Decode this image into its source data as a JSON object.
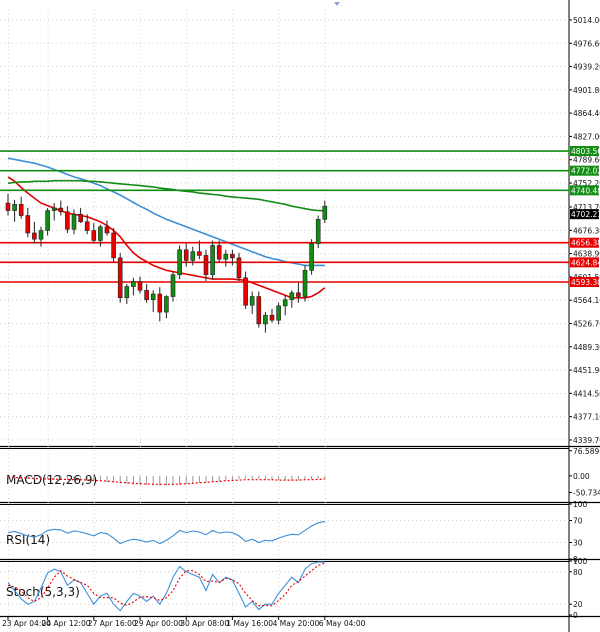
{
  "chart_data": [
    {
      "type": "candlestick",
      "panel": "price",
      "title": "",
      "ylim": [
        4330,
        5030
      ],
      "y_ticks": [
        "5014.00",
        "4976.60",
        "4939.20",
        "4901.80",
        "4864.40",
        "4827.00",
        "4789.60",
        "4752.20",
        "4713.70",
        "4676.30",
        "4638.90",
        "4601.50",
        "4564.10",
        "4526.70",
        "4489.30",
        "4451.90",
        "4414.50",
        "4377.10",
        "4339.70"
      ],
      "y_tick_values": [
        5014.0,
        4976.6,
        4939.2,
        4901.8,
        4864.4,
        4827.0,
        4789.6,
        4752.2,
        4713.7,
        4676.3,
        4638.9,
        4601.5,
        4564.1,
        4526.7,
        4489.3,
        4451.9,
        4414.5,
        4377.1,
        4339.7
      ],
      "x_labels": [
        "23 Apr 04:00",
        "24 Apr 12:00",
        "27 Apr 16:00",
        "29 Apr 00:00",
        "30 Apr 08:00",
        "1 May 16:00",
        "4 May 20:00",
        "6 May 04:00"
      ],
      "x_label_index": [
        0,
        6,
        13,
        20,
        27,
        34,
        41,
        48
      ],
      "candles": [
        [
          4720,
          4735,
          4700,
          4708
        ],
        [
          4708,
          4725,
          4690,
          4718
        ],
        [
          4718,
          4730,
          4695,
          4700
        ],
        [
          4700,
          4712,
          4665,
          4672
        ],
        [
          4672,
          4690,
          4655,
          4662
        ],
        [
          4662,
          4682,
          4650,
          4676
        ],
        [
          4676,
          4712,
          4668,
          4708
        ],
        [
          4708,
          4720,
          4692,
          4712
        ],
        [
          4712,
          4724,
          4700,
          4706
        ],
        [
          4706,
          4715,
          4672,
          4678
        ],
        [
          4678,
          4710,
          4670,
          4702
        ],
        [
          4702,
          4712,
          4688,
          4690
        ],
        [
          4690,
          4702,
          4670,
          4676
        ],
        [
          4676,
          4688,
          4655,
          4660
        ],
        [
          4660,
          4685,
          4650,
          4682
        ],
        [
          4682,
          4692,
          4668,
          4672
        ],
        [
          4672,
          4680,
          4625,
          4632
        ],
        [
          4632,
          4640,
          4560,
          4568
        ],
        [
          4568,
          4590,
          4558,
          4586
        ],
        [
          4586,
          4600,
          4572,
          4594
        ],
        [
          4594,
          4602,
          4575,
          4580
        ],
        [
          4580,
          4590,
          4560,
          4565
        ],
        [
          4565,
          4580,
          4545,
          4574
        ],
        [
          4574,
          4585,
          4530,
          4545
        ],
        [
          4545,
          4572,
          4535,
          4570
        ],
        [
          4570,
          4610,
          4562,
          4605
        ],
        [
          4605,
          4652,
          4598,
          4645
        ],
        [
          4645,
          4655,
          4618,
          4628
        ],
        [
          4628,
          4650,
          4620,
          4642
        ],
        [
          4642,
          4660,
          4630,
          4636
        ],
        [
          4636,
          4645,
          4595,
          4605
        ],
        [
          4605,
          4660,
          4598,
          4652
        ],
        [
          4652,
          4660,
          4625,
          4630
        ],
        [
          4630,
          4645,
          4618,
          4638
        ],
        [
          4638,
          4645,
          4620,
          4632
        ],
        [
          4632,
          4640,
          4595,
          4600
        ],
        [
          4600,
          4610,
          4550,
          4556
        ],
        [
          4556,
          4578,
          4542,
          4570
        ],
        [
          4570,
          4578,
          4520,
          4526
        ],
        [
          4526,
          4545,
          4512,
          4540
        ],
        [
          4540,
          4550,
          4528,
          4532
        ],
        [
          4532,
          4560,
          4525,
          4555
        ],
        [
          4555,
          4572,
          4540,
          4565
        ],
        [
          4565,
          4580,
          4552,
          4576
        ],
        [
          4576,
          4592,
          4560,
          4570
        ],
        [
          4570,
          4620,
          4562,
          4612
        ],
        [
          4612,
          4662,
          4605,
          4655
        ],
        [
          4655,
          4700,
          4648,
          4694
        ],
        [
          4694,
          4724,
          4688,
          4715
        ]
      ],
      "series": [
        {
          "name": "",
          "color": "#e60000",
          "values": [
            4762,
            4755,
            4745,
            4736,
            4728,
            4720,
            4716,
            4712,
            4708,
            4704,
            4702,
            4700,
            4698,
            4694,
            4690,
            4684,
            4676,
            4666,
            4652,
            4640,
            4632,
            4626,
            4620,
            4616,
            4612,
            4610,
            4608,
            4606,
            4604,
            4602,
            4600,
            4598,
            4598,
            4598,
            4598,
            4597,
            4596,
            4592,
            4588,
            4584,
            4580,
            4576,
            4572,
            4568,
            4568,
            4568,
            4570,
            4576,
            4584
          ]
        },
        {
          "name": "",
          "color": "#3c8fd8",
          "values": [
            4792,
            4790,
            4788,
            4786,
            4784,
            4781,
            4778,
            4774,
            4770,
            4766,
            4762,
            4759,
            4756,
            4752,
            4748,
            4743,
            4738,
            4733,
            4727,
            4721,
            4715,
            4710,
            4704,
            4699,
            4694,
            4690,
            4686,
            4682,
            4678,
            4674,
            4670,
            4666,
            4662,
            4658,
            4654,
            4650,
            4646,
            4642,
            4638,
            4634,
            4631,
            4629,
            4626,
            4624,
            4622,
            4620,
            4620,
            4620,
            4620
          ]
        },
        {
          "name": "",
          "color": "#128c12",
          "values": [
            4752,
            4753,
            4754,
            4754,
            4755,
            4755,
            4755,
            4756,
            4756,
            4756,
            4756,
            4756,
            4755,
            4755,
            4754,
            4753,
            4752,
            4751,
            4750,
            4749,
            4748,
            4747,
            4746,
            4744,
            4743,
            4742,
            4740,
            4739,
            4738,
            4736,
            4735,
            4734,
            4733,
            4731,
            4730,
            4729,
            4728,
            4727,
            4726,
            4724,
            4722,
            4720,
            4718,
            4715,
            4713,
            4711,
            4709,
            4708,
            4708
          ]
        }
      ],
      "h_lines": [
        {
          "value": 4803.56,
          "label": "4803.56",
          "color": "#128c12"
        },
        {
          "value": 4772.02,
          "label": "4772.02",
          "color": "#128c12"
        },
        {
          "value": 4740.48,
          "label": "4740.48",
          "color": "#128c12"
        },
        {
          "value": 4656.38,
          "label": "4656.38",
          "color": "#e60000"
        },
        {
          "value": 4624.84,
          "label": "4624.84",
          "color": "#e60000"
        },
        {
          "value": 4593.3,
          "label": "4593.30",
          "color": "#e60000"
        }
      ],
      "current_price": {
        "value": 4702.21,
        "label": "4702.21"
      },
      "colors": {
        "bull": "#128c12",
        "bear": "#e60000"
      }
    },
    {
      "type": "macd",
      "panel": "MACD",
      "label": "MACD(12,26,9)",
      "ylim": [
        -80,
        85
      ],
      "y_ticks": [
        "76.589",
        "0.00",
        "-50.734"
      ],
      "y_tick_values": [
        76.589,
        0.0,
        -50.734
      ],
      "histogram": [
        -4,
        -6,
        -8,
        -9,
        -10,
        -11,
        -11,
        -12,
        -12,
        -13,
        -13,
        -14,
        -15,
        -16,
        -17,
        -19,
        -21,
        -23,
        -25,
        -27,
        -28,
        -29,
        -30,
        -30,
        -30,
        -29,
        -28,
        -26,
        -24,
        -22,
        -20,
        -18,
        -16,
        -14,
        -12,
        -10,
        -9,
        -9,
        -10,
        -11,
        -12,
        -13,
        -13,
        -13,
        -12,
        -11,
        -10,
        -9,
        -8
      ],
      "signal": [
        -3,
        -5,
        -6,
        -7,
        -8,
        -9,
        -10,
        -10,
        -11,
        -11,
        -12,
        -12,
        -13,
        -14,
        -15,
        -16,
        -18,
        -20,
        -21,
        -23,
        -24,
        -25,
        -26,
        -26,
        -26,
        -26,
        -25,
        -24,
        -23,
        -21,
        -20,
        -18,
        -17,
        -15,
        -14,
        -13,
        -12,
        -12,
        -12,
        -12,
        -12,
        -13,
        -13,
        -13,
        -13,
        -12,
        -12,
        -11,
        -10
      ],
      "colors": {
        "histogram": "#999999",
        "signal": "#e60000"
      }
    },
    {
      "type": "line",
      "panel": "RSI",
      "label": "RSI(14)",
      "ylim": [
        0,
        100
      ],
      "y_ticks": [
        "100",
        "70",
        "30",
        "0"
      ],
      "y_tick_values": [
        100,
        70,
        30,
        0
      ],
      "series": [
        {
          "name": "",
          "color": "#3c8fd8",
          "values": [
            48,
            50,
            46,
            42,
            40,
            44,
            52,
            54,
            53,
            47,
            51,
            49,
            46,
            42,
            48,
            46,
            38,
            28,
            33,
            36,
            34,
            31,
            34,
            28,
            34,
            42,
            52,
            48,
            51,
            49,
            44,
            52,
            47,
            49,
            48,
            42,
            32,
            36,
            30,
            34,
            33,
            38,
            42,
            45,
            44,
            52,
            60,
            66,
            68
          ]
        }
      ]
    },
    {
      "type": "line",
      "panel": "Stochastic",
      "label": "Stoch(5,3,3)",
      "ylim": [
        0,
        100
      ],
      "y_ticks": [
        "100",
        "80",
        "20",
        "0"
      ],
      "y_tick_values": [
        100,
        80,
        20,
        0
      ],
      "series": [
        {
          "name": "",
          "color": "#3c8fd8",
          "values": [
            60,
            45,
            30,
            20,
            25,
            50,
            78,
            85,
            80,
            55,
            65,
            60,
            40,
            20,
            35,
            40,
            20,
            8,
            25,
            40,
            35,
            25,
            35,
            20,
            40,
            70,
            90,
            80,
            75,
            70,
            45,
            75,
            60,
            70,
            65,
            40,
            15,
            25,
            10,
            20,
            20,
            40,
            55,
            70,
            60,
            85,
            95,
            98,
            98
          ]
        },
        {
          "name": "",
          "color": "#e60000",
          "values": [
            55,
            52,
            45,
            32,
            25,
            32,
            50,
            70,
            82,
            72,
            66,
            60,
            55,
            40,
            32,
            32,
            32,
            22,
            18,
            24,
            33,
            34,
            32,
            27,
            32,
            45,
            68,
            82,
            82,
            75,
            62,
            63,
            60,
            68,
            65,
            58,
            40,
            27,
            17,
            18,
            17,
            27,
            38,
            55,
            62,
            72,
            82,
            92,
            96
          ]
        }
      ]
    }
  ]
}
